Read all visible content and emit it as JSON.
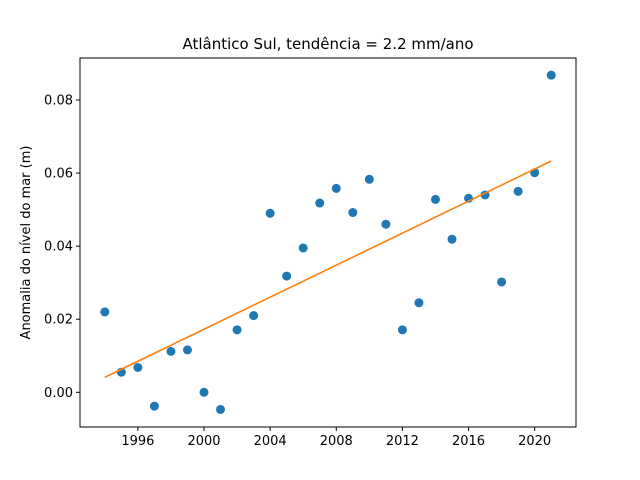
{
  "chart_data": {
    "type": "scatter",
    "title": "Atlântico Sul, tendência = 2.2 mm/ano",
    "xlabel": "",
    "ylabel": "Anomalia do nível do mar (m)",
    "xlim": [
      1992.5,
      2022.5
    ],
    "ylim": [
      -0.0095,
      0.0915
    ],
    "x_ticks": [
      1996,
      2000,
      2004,
      2008,
      2012,
      2016,
      2020
    ],
    "x_tick_labels": [
      "1996",
      "2000",
      "2004",
      "2008",
      "2012",
      "2016",
      "2020"
    ],
    "y_ticks": [
      0.0,
      0.02,
      0.04,
      0.06,
      0.08
    ],
    "y_tick_labels": [
      "0.00",
      "0.02",
      "0.04",
      "0.06",
      "0.08"
    ],
    "grid": false,
    "series": [
      {
        "kind": "scatter",
        "color": "#1f77b4",
        "x": [
          1994,
          1995,
          1996,
          1997,
          1998,
          1999,
          2000,
          2001,
          2002,
          2003,
          2004,
          2005,
          2006,
          2007,
          2008,
          2009,
          2010,
          2011,
          2012,
          2013,
          2014,
          2015,
          2016,
          2017,
          2018,
          2019,
          2020,
          2021
        ],
        "y": [
          0.022,
          0.0055,
          0.0068,
          -0.0038,
          0.0112,
          0.0116,
          0.0,
          -0.0047,
          0.0171,
          0.021,
          0.049,
          0.0318,
          0.0395,
          0.0518,
          0.0558,
          0.0492,
          0.0583,
          0.046,
          0.0171,
          0.0245,
          0.0528,
          0.0419,
          0.0531,
          0.054,
          0.0302,
          0.055,
          0.0601,
          0.0868
        ]
      },
      {
        "kind": "line",
        "color": "#ff7f0e",
        "x": [
          1994,
          2021
        ],
        "y": [
          0.0041,
          0.0633
        ]
      }
    ]
  }
}
